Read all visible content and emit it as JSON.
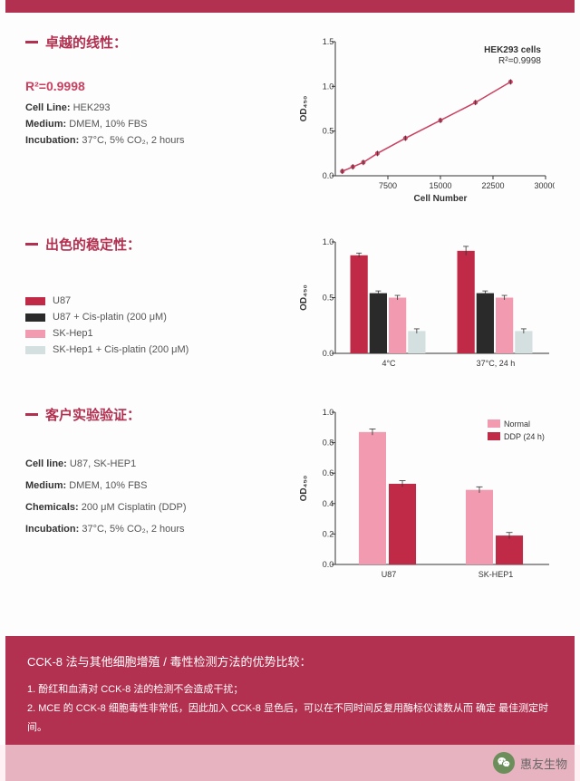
{
  "sections": {
    "linearity": {
      "title": "卓越的线性：",
      "rsq_label": "R²=0.9998",
      "lines": [
        {
          "label": "Cell Line:",
          "value": " HEK293"
        },
        {
          "label": "Medium:",
          "value": " DMEM, 10% FBS"
        },
        {
          "label": "Incubation:",
          "value": " 37°C, 5% CO₂, 2 hours"
        }
      ],
      "chart": {
        "type": "scatter-line",
        "annot_title": "HEK293 cells",
        "annot_rsq": "R²=0.9998",
        "ylabel": "OD₄₅₀",
        "xlabel": "Cell Number",
        "xlim": [
          0,
          30000
        ],
        "ylim": [
          0,
          1.5
        ],
        "xticks": [
          7500,
          15000,
          22500,
          30000
        ],
        "yticks": [
          0,
          0.5,
          1.0,
          1.5
        ],
        "points": [
          {
            "x": 1000,
            "y": 0.05
          },
          {
            "x": 2500,
            "y": 0.1
          },
          {
            "x": 4000,
            "y": 0.15
          },
          {
            "x": 6000,
            "y": 0.25
          },
          {
            "x": 10000,
            "y": 0.42
          },
          {
            "x": 15000,
            "y": 0.62
          },
          {
            "x": 20000,
            "y": 0.82
          },
          {
            "x": 25000,
            "y": 1.05
          }
        ],
        "line_color": "#c94060",
        "marker_color": "#c94060",
        "plot_bg": "#ffffff",
        "axis_color": "#333333"
      }
    },
    "stability": {
      "title": "出色的稳定性：",
      "legend": [
        {
          "label": "U87",
          "color": "#c02a46"
        },
        {
          "label": "U87 + Cis-platin (200 μM)",
          "color": "#2a2a2a"
        },
        {
          "label": "SK-Hep1",
          "color": "#f29bb0"
        },
        {
          "label": "SK-Hep1 + Cis-platin (200 μM)",
          "color": "#d4e0df"
        }
      ],
      "chart": {
        "type": "grouped-bar",
        "ylabel": "OD₄₅₀",
        "ylim": [
          0,
          1.0
        ],
        "yticks": [
          0,
          0.5,
          1.0
        ],
        "groups": [
          "4°C",
          "37°C, 24 h"
        ],
        "series": [
          {
            "color": "#c02a46",
            "values": [
              0.88,
              0.92
            ],
            "err": [
              0.02,
              0.04
            ]
          },
          {
            "color": "#2a2a2a",
            "values": [
              0.54,
              0.54
            ],
            "err": [
              0.02,
              0.02
            ]
          },
          {
            "color": "#f29bb0",
            "values": [
              0.5,
              0.5
            ],
            "err": [
              0.02,
              0.02
            ]
          },
          {
            "color": "#d4e0df",
            "values": [
              0.2,
              0.2
            ],
            "err": [
              0.02,
              0.02
            ]
          }
        ],
        "bar_width": 0.18,
        "axis_color": "#333333"
      }
    },
    "validation": {
      "title": "客户实验验证：",
      "lines": [
        {
          "label": "Cell line:",
          "value": " U87, SK-HEP1"
        },
        {
          "label": "Medium:",
          "value": " DMEM, 10% FBS"
        },
        {
          "label": "Chemicals:",
          "value": " 200 μM Cisplatin (DDP)"
        },
        {
          "label": "Incubation:",
          "value": " 37°C, 5% CO₂, 2 hours"
        }
      ],
      "chart": {
        "type": "grouped-bar",
        "ylabel": "OD₄₅₀",
        "ylim": [
          0,
          1.0
        ],
        "yticks": [
          0,
          0.2,
          0.4,
          0.6,
          0.8,
          1.0
        ],
        "groups": [
          "U87",
          "SK-HEP1"
        ],
        "legend": [
          {
            "label": "Normal",
            "color": "#f29bb0"
          },
          {
            "label": "DDP (24 h)",
            "color": "#c02a46"
          }
        ],
        "series": [
          {
            "color": "#f29bb0",
            "values": [
              0.87,
              0.49
            ],
            "err": [
              0.02,
              0.02
            ]
          },
          {
            "color": "#c02a46",
            "values": [
              0.53,
              0.19
            ],
            "err": [
              0.02,
              0.02
            ]
          }
        ],
        "bar_width": 0.28,
        "axis_color": "#333333"
      }
    }
  },
  "footer": {
    "title": "CCK-8 法与其他细胞增殖 / 毒性检测方法的优势比较：",
    "items": [
      "1.  酚红和血清对 CCK-8 法的检测不会造成干扰；",
      "2.  MCE 的 CCK-8 细胞毒性非常低，因此加入 CCK-8 显色后，可以在不同时间反复用酶标仪读数从而  确定 最佳测定时间。"
    ]
  },
  "wechat": {
    "name": "惠友生物"
  },
  "colors": {
    "brand": "#b23050",
    "brand_light": "#c94060"
  }
}
